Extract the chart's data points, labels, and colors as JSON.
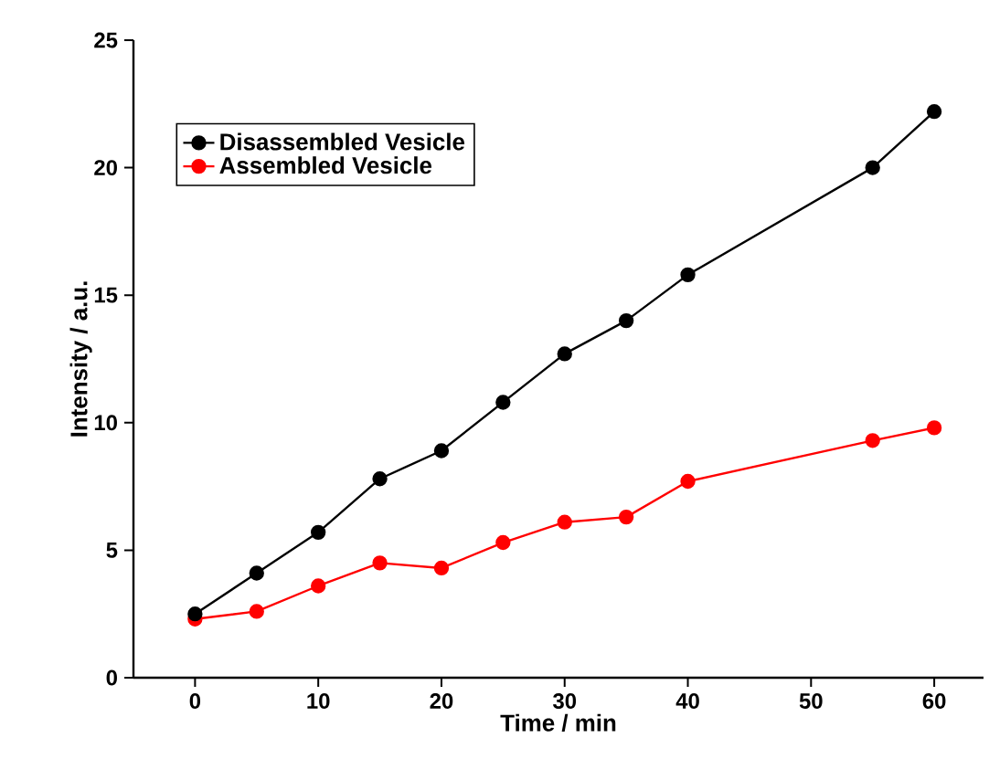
{
  "chart_data": {
    "type": "line",
    "xlabel": "Time / min",
    "ylabel": "Intensity / a.u.",
    "x": [
      0,
      5,
      10,
      15,
      20,
      25,
      30,
      35,
      40,
      55,
      60
    ],
    "series": [
      {
        "name": "Disassembled Vesicle",
        "color": "#000000",
        "values": [
          2.5,
          4.1,
          5.7,
          7.8,
          8.9,
          10.8,
          12.7,
          14.0,
          15.8,
          20.0,
          22.2
        ]
      },
      {
        "name": "Assembled Vesicle",
        "color": "#ff0000",
        "values": [
          2.3,
          2.6,
          3.6,
          4.5,
          4.3,
          5.3,
          6.1,
          6.3,
          7.7,
          9.3,
          9.8
        ]
      }
    ],
    "xlim": [
      -5,
      64
    ],
    "ylim": [
      0,
      25
    ],
    "xticks": [
      0,
      10,
      20,
      30,
      40,
      50,
      60
    ],
    "yticks": [
      0,
      5,
      10,
      15,
      20,
      25
    ],
    "legend": "top left",
    "marker": "circle",
    "line_style": "solid",
    "grid": false
  }
}
